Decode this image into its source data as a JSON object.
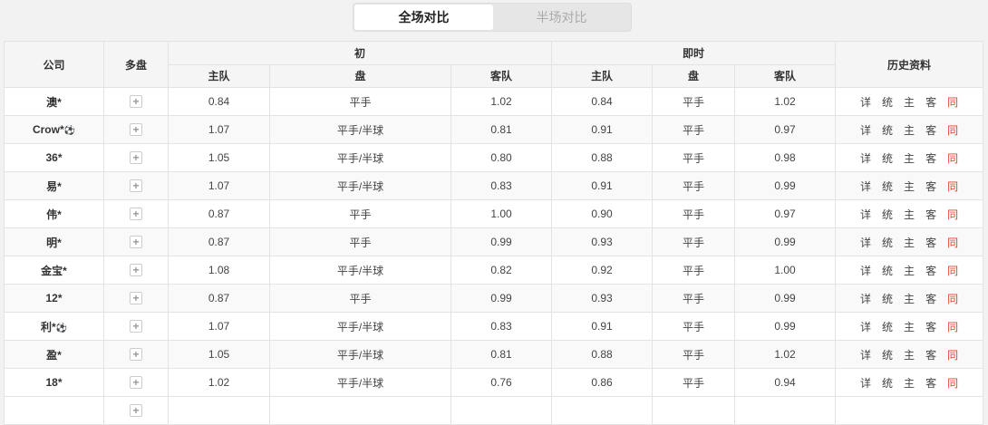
{
  "tabs": [
    {
      "label": "全场对比",
      "active": true
    },
    {
      "label": "半场对比",
      "active": false
    }
  ],
  "header": {
    "company": "公司",
    "multi": "多盘",
    "initial": "初",
    "live": "即时",
    "history": "历史资料",
    "home": "主队",
    "line": "盘",
    "away": "客队"
  },
  "history_links": [
    "详",
    "统",
    "主",
    "客",
    "同"
  ],
  "colors": {
    "same_link": "#e0402a"
  },
  "rows": [
    {
      "company": "澳*",
      "icon": "",
      "i_home": "0.84",
      "i_line": "平手",
      "i_away": "1.02",
      "l_home": "0.84",
      "l_line": "平手",
      "l_away": "1.02"
    },
    {
      "company": "Crow*",
      "icon": "soccer-ball",
      "i_home": "1.07",
      "i_line": "平手/半球",
      "i_away": "0.81",
      "l_home": "0.91",
      "l_line": "平手",
      "l_away": "0.97"
    },
    {
      "company": "36*",
      "icon": "",
      "i_home": "1.05",
      "i_line": "平手/半球",
      "i_away": "0.80",
      "l_home": "0.88",
      "l_line": "平手",
      "l_away": "0.98"
    },
    {
      "company": "易*",
      "icon": "",
      "i_home": "1.07",
      "i_line": "平手/半球",
      "i_away": "0.83",
      "l_home": "0.91",
      "l_line": "平手",
      "l_away": "0.99"
    },
    {
      "company": "伟*",
      "icon": "",
      "i_home": "0.87",
      "i_line": "平手",
      "i_away": "1.00",
      "l_home": "0.90",
      "l_line": "平手",
      "l_away": "0.97"
    },
    {
      "company": "明*",
      "icon": "",
      "i_home": "0.87",
      "i_line": "平手",
      "i_away": "0.99",
      "l_home": "0.93",
      "l_line": "平手",
      "l_away": "0.99"
    },
    {
      "company": "金宝*",
      "icon": "",
      "i_home": "1.08",
      "i_line": "平手/半球",
      "i_away": "0.82",
      "l_home": "0.92",
      "l_line": "平手",
      "l_away": "1.00"
    },
    {
      "company": "12*",
      "icon": "",
      "i_home": "0.87",
      "i_line": "平手",
      "i_away": "0.99",
      "l_home": "0.93",
      "l_line": "平手",
      "l_away": "0.99"
    },
    {
      "company": "利*",
      "icon": "soccer-ball",
      "i_home": "1.07",
      "i_line": "平手/半球",
      "i_away": "0.83",
      "l_home": "0.91",
      "l_line": "平手",
      "l_away": "0.99"
    },
    {
      "company": "盈*",
      "icon": "",
      "i_home": "1.05",
      "i_line": "平手/半球",
      "i_away": "0.81",
      "l_home": "0.88",
      "l_line": "平手",
      "l_away": "1.02"
    },
    {
      "company": "18*",
      "icon": "",
      "i_home": "1.02",
      "i_line": "平手/半球",
      "i_away": "0.76",
      "l_home": "0.86",
      "l_line": "平手",
      "l_away": "0.94"
    }
  ]
}
